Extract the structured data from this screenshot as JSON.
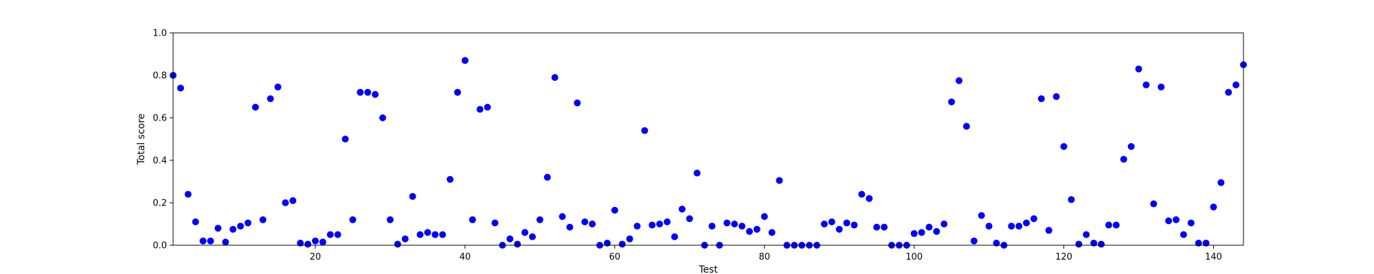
{
  "chart_data": {
    "type": "scatter",
    "title": "",
    "xlabel": "Test",
    "ylabel": "Total score",
    "xlim": [
      1,
      144
    ],
    "ylim": [
      0,
      1.0
    ],
    "xticks": [
      20,
      40,
      60,
      80,
      100,
      120,
      140
    ],
    "yticks": [
      0.0,
      0.2,
      0.4,
      0.6,
      0.8,
      1.0
    ],
    "xtick_labels": [
      "20",
      "40",
      "60",
      "80",
      "100",
      "120",
      "140"
    ],
    "ytick_labels": [
      "0.0",
      "0.2",
      "0.4",
      "0.6",
      "0.8",
      "1.0"
    ],
    "grid": false,
    "marker_color": "#0000ff",
    "x": [
      1,
      2,
      3,
      4,
      5,
      6,
      7,
      8,
      9,
      10,
      11,
      12,
      13,
      14,
      15,
      16,
      17,
      18,
      19,
      20,
      21,
      22,
      23,
      24,
      25,
      26,
      27,
      28,
      29,
      30,
      31,
      32,
      33,
      34,
      35,
      36,
      37,
      38,
      39,
      40,
      41,
      42,
      43,
      44,
      45,
      46,
      47,
      48,
      49,
      50,
      51,
      52,
      53,
      54,
      55,
      56,
      57,
      58,
      59,
      60,
      61,
      62,
      63,
      64,
      65,
      66,
      67,
      68,
      69,
      70,
      71,
      72,
      73,
      74,
      75,
      76,
      77,
      78,
      79,
      80,
      81,
      82,
      83,
      84,
      85,
      86,
      87,
      88,
      89,
      90,
      91,
      92,
      93,
      94,
      95,
      96,
      97,
      98,
      99,
      100,
      101,
      102,
      103,
      104,
      105,
      106,
      107,
      108,
      109,
      110,
      111,
      112,
      113,
      114,
      115,
      116,
      117,
      118,
      119,
      120,
      121,
      122,
      123,
      124,
      125,
      126,
      127,
      128,
      129,
      130,
      131,
      132,
      133,
      134,
      135,
      136,
      137,
      138,
      139,
      140,
      141,
      142,
      143,
      144
    ],
    "y": [
      0.8,
      0.74,
      0.24,
      0.11,
      0.02,
      0.02,
      0.08,
      0.015,
      0.075,
      0.09,
      0.105,
      0.65,
      0.12,
      0.69,
      0.745,
      0.2,
      0.21,
      0.01,
      0.005,
      0.02,
      0.015,
      0.05,
      0.05,
      0.5,
      0.12,
      0.72,
      0.72,
      0.71,
      0.6,
      0.12,
      0.005,
      0.03,
      0.23,
      0.05,
      0.06,
      0.05,
      0.05,
      0.31,
      0.72,
      0.87,
      0.12,
      0.64,
      0.65,
      0.105,
      0.0,
      0.03,
      0.005,
      0.06,
      0.04,
      0.12,
      0.32,
      0.79,
      0.135,
      0.085,
      0.67,
      0.11,
      0.1,
      0.0,
      0.01,
      0.165,
      0.005,
      0.03,
      0.09,
      0.54,
      0.095,
      0.1,
      0.11,
      0.04,
      0.17,
      0.125,
      0.34,
      0.0,
      0.09,
      0.0,
      0.105,
      0.1,
      0.09,
      0.065,
      0.075,
      0.135,
      0.06,
      0.305,
      0.0,
      0.0,
      0.0,
      0.0,
      0.0,
      0.1,
      0.11,
      0.075,
      0.105,
      0.095,
      0.24,
      0.22,
      0.085,
      0.085,
      0.0,
      0.0,
      0.0,
      0.055,
      0.06,
      0.085,
      0.065,
      0.1,
      0.675,
      0.775,
      0.56,
      0.02,
      0.14,
      0.09,
      0.01,
      0.0,
      0.09,
      0.09,
      0.105,
      0.125,
      0.69,
      0.07,
      0.7,
      0.465,
      0.215,
      0.005,
      0.05,
      0.01,
      0.005,
      0.095,
      0.095,
      0.405,
      0.465,
      0.83,
      0.755,
      0.195,
      0.745,
      0.115,
      0.12,
      0.05,
      0.105,
      0.01,
      0.01,
      0.18,
      0.295,
      0.72,
      0.755,
      0.85
    ]
  }
}
